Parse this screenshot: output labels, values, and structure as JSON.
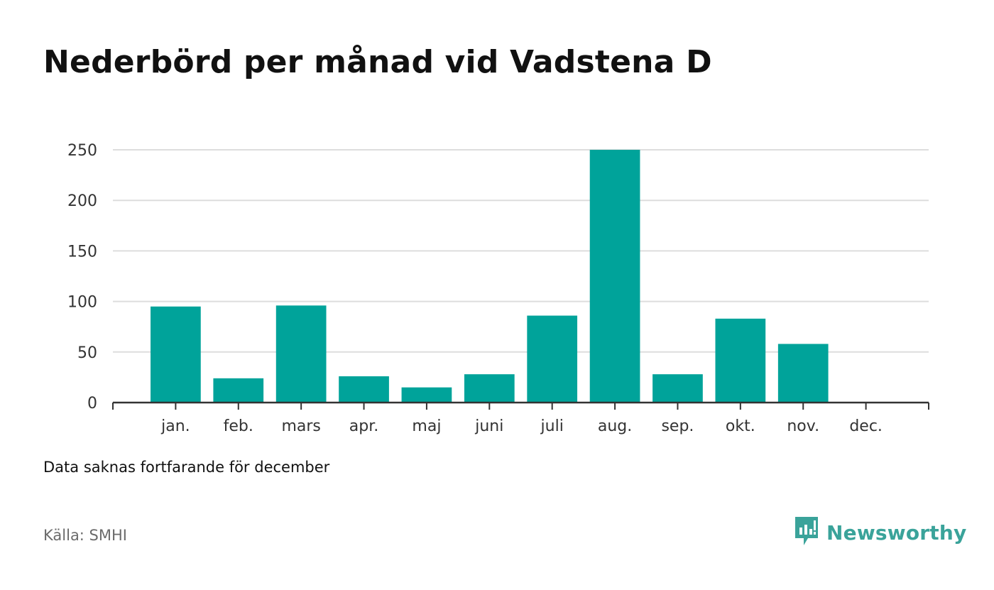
{
  "title": "Nederbörd per månad vid Vadstena D",
  "note": "Data saknas fortfarande för december",
  "source": "Källa: SMHI",
  "brand": {
    "name": "Newsworthy",
    "icon": "newsworthy-logo-icon",
    "color": "#3aa39a"
  },
  "chart_data": {
    "type": "bar",
    "title": "Nederbörd per månad vid Vadstena D",
    "xlabel": "",
    "ylabel": "",
    "categories": [
      "jan.",
      "feb.",
      "mars",
      "apr.",
      "maj",
      "juni",
      "juli",
      "aug.",
      "sep.",
      "okt.",
      "nov.",
      "dec."
    ],
    "values": [
      95,
      24,
      96,
      26,
      15,
      28,
      86,
      250,
      28,
      83,
      58,
      null
    ],
    "ylim": [
      0,
      250
    ],
    "yticks": [
      0,
      50,
      100,
      150,
      200,
      250
    ],
    "grid": true,
    "bar_color": "#00a39a",
    "grid_color": "#dddddd",
    "axis_color": "#333333"
  }
}
